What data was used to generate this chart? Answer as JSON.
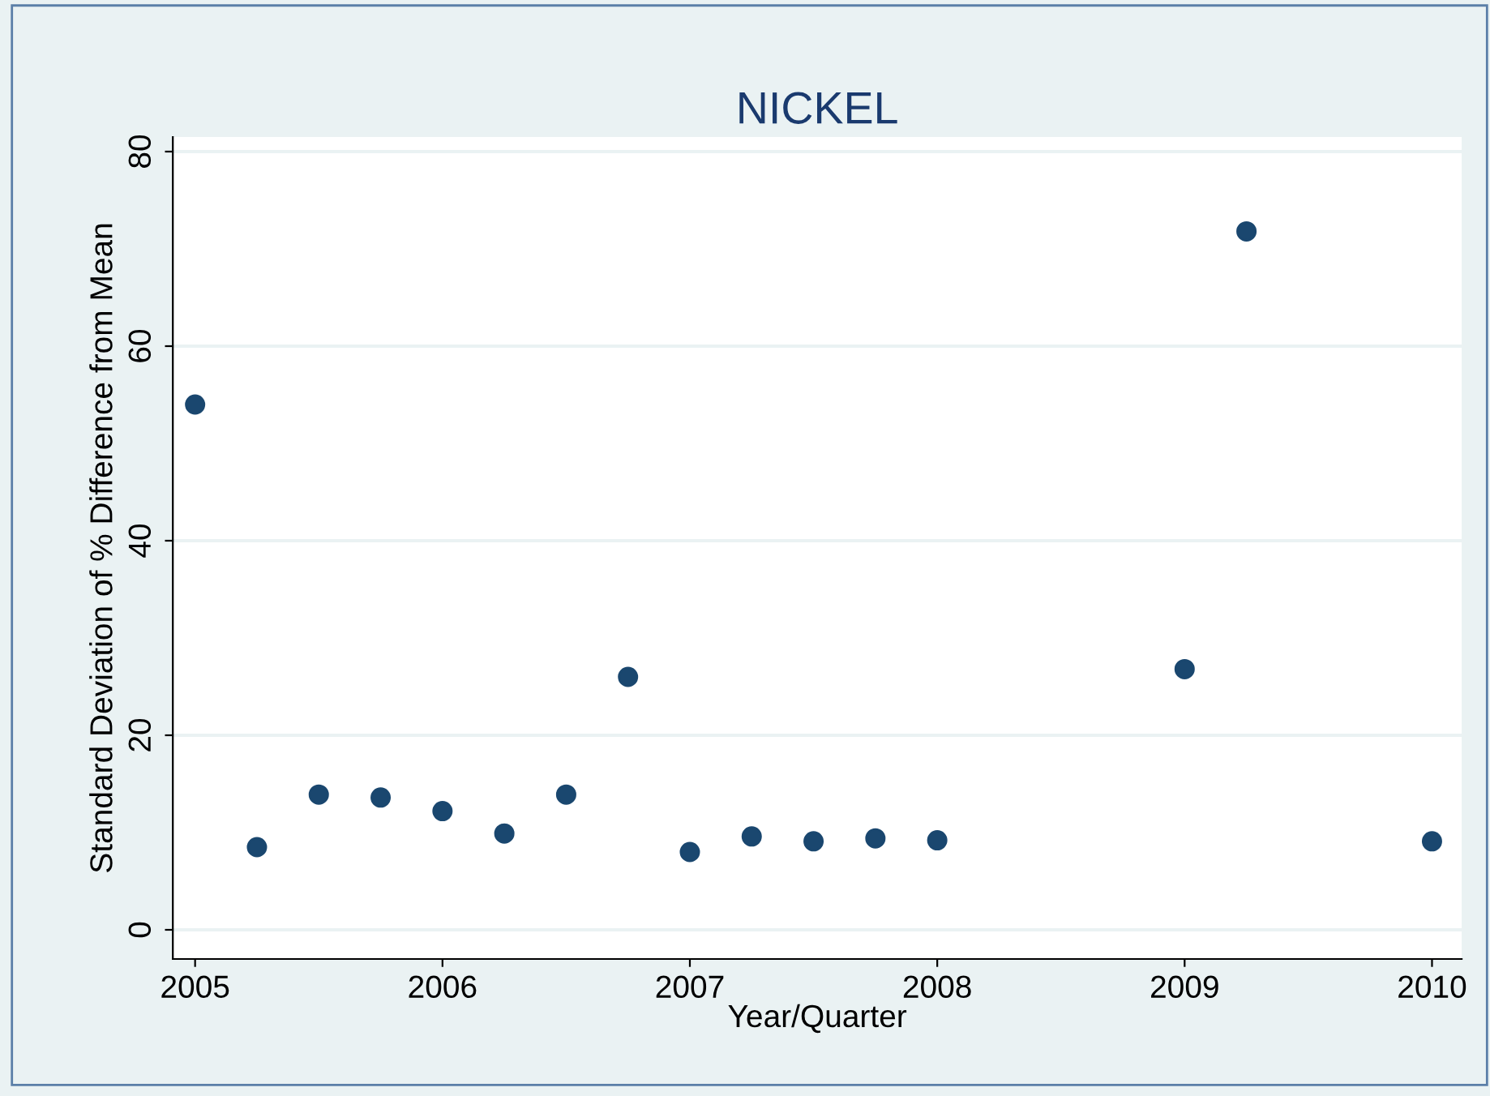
{
  "chart_data": {
    "type": "scatter",
    "title": "NICKEL",
    "xlabel": "Year/Quarter",
    "ylabel": "Standard Deviation of % Difference from Mean",
    "x": [
      2005.0,
      2005.25,
      2005.5,
      2005.75,
      2006.0,
      2006.25,
      2006.5,
      2006.75,
      2007.0,
      2007.25,
      2007.5,
      2007.75,
      2008.0,
      2009.0,
      2009.25,
      2010.0
    ],
    "values": [
      54.0,
      8.5,
      13.9,
      13.6,
      12.2,
      9.9,
      13.9,
      26.0,
      8.0,
      9.6,
      9.1,
      9.4,
      9.2,
      26.8,
      71.8,
      9.1
    ],
    "color": "#1a476f",
    "marker": "circle",
    "xlim": [
      2004.91,
      2010.12
    ],
    "xticks": [
      2005,
      2006,
      2007,
      2008,
      2009,
      2010
    ],
    "ylim": [
      -3,
      81.5
    ],
    "yticks": [
      0,
      20,
      40,
      60,
      80
    ],
    "grid": "y"
  }
}
